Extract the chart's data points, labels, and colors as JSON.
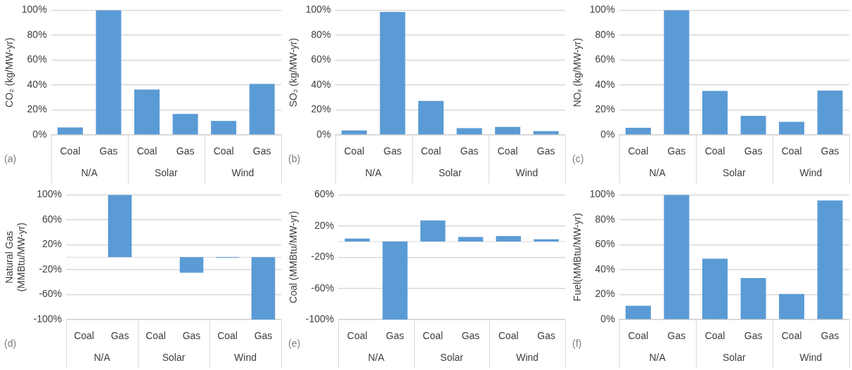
{
  "chart_data": [
    {
      "type": "bar",
      "ylabel": "CO₂ (kg/MW-yr)",
      "categories": [
        "Coal",
        "Gas",
        "Coal",
        "Gas",
        "Coal",
        "Gas"
      ],
      "values": [
        6,
        100,
        36.4,
        16.9,
        11.2,
        40.9
      ],
      "color": "#5b9bd5",
      "ylim": [
        0,
        100
      ],
      "yticks": [
        {
          "value": 0,
          "label": "0%"
        },
        {
          "value": 20,
          "label": "20%"
        },
        {
          "value": 40,
          "label": "40%"
        },
        {
          "value": 60,
          "label": "60%"
        },
        {
          "value": 80,
          "label": "80%"
        },
        {
          "value": 100,
          "label": "100%"
        }
      ],
      "grid": "y",
      "legend": false,
      "annotations": [
        "(a)",
        "N/A",
        "Solar",
        "Wind"
      ]
    },
    {
      "type": "bar",
      "ylabel": "SO₂ (kg/MW-yr)",
      "categories": [
        "Coal",
        "Gas",
        "Coal",
        "Gas",
        "Coal",
        "Gas"
      ],
      "values": [
        3.6,
        98.5,
        27.2,
        5.5,
        6.5,
        3
      ],
      "color": "#5b9bd5",
      "ylim": [
        0,
        100
      ],
      "yticks": [
        {
          "value": 0,
          "label": "0%"
        },
        {
          "value": 20,
          "label": "20%"
        },
        {
          "value": 40,
          "label": "40%"
        },
        {
          "value": 60,
          "label": "60%"
        },
        {
          "value": 80,
          "label": "80%"
        },
        {
          "value": 100,
          "label": "100%"
        }
      ],
      "grid": "y",
      "legend": false,
      "annotations": [
        "(b)",
        "N/A",
        "Solar",
        "Wind"
      ]
    },
    {
      "type": "bar",
      "ylabel": "NOₓ (kg/MW-yr)",
      "categories": [
        "Coal",
        "Gas",
        "Coal",
        "Gas",
        "Coal",
        "Gas"
      ],
      "values": [
        5.7,
        100,
        35.2,
        15.3,
        10.5,
        35.6
      ],
      "color": "#5b9bd5",
      "ylim": [
        0,
        100
      ],
      "yticks": [
        {
          "value": 0,
          "label": "0%"
        },
        {
          "value": 20,
          "label": "20%"
        },
        {
          "value": 40,
          "label": "40%"
        },
        {
          "value": 60,
          "label": "60%"
        },
        {
          "value": 80,
          "label": "80%"
        },
        {
          "value": 100,
          "label": "100%"
        }
      ],
      "grid": "y",
      "legend": false,
      "annotations": [
        "(c)",
        "N/A",
        "Solar",
        "Wind"
      ]
    },
    {
      "type": "bar",
      "ylabel": "Natural Gas\n(MMBtu/MW-yr)",
      "categories": [
        "Coal",
        "Gas",
        "Coal",
        "Gas",
        "Coal",
        "Gas"
      ],
      "values": [
        0,
        100,
        0,
        -25,
        -1,
        -100
      ],
      "color": "#5b9bd5",
      "ylim": [
        -100,
        100
      ],
      "yticks": [
        {
          "value": -100,
          "label": "-100%"
        },
        {
          "value": -60,
          "label": "-60%"
        },
        {
          "value": -20,
          "label": "-20%"
        },
        {
          "value": 20,
          "label": "20%"
        },
        {
          "value": 60,
          "label": "60%"
        },
        {
          "value": 100,
          "label": "100%"
        }
      ],
      "grid": "y",
      "legend": false,
      "annotations": [
        "(d)",
        "N/A",
        "Solar",
        "Wind"
      ]
    },
    {
      "type": "bar",
      "ylabel": "Coal (MMBtu/MW-yr)",
      "categories": [
        "Coal",
        "Gas",
        "Coal",
        "Gas",
        "Coal",
        "Gas"
      ],
      "values": [
        4,
        -100,
        27,
        6,
        7,
        3
      ],
      "color": "#5b9bd5",
      "ylim": [
        -100,
        60
      ],
      "yticks": [
        {
          "value": -100,
          "label": "-100%"
        },
        {
          "value": -60,
          "label": "-60%"
        },
        {
          "value": -20,
          "label": "-20%"
        },
        {
          "value": 20,
          "label": "20%"
        },
        {
          "value": 60,
          "label": "60%"
        }
      ],
      "grid": "y",
      "legend": false,
      "annotations": [
        "(e)",
        "N/A",
        "Solar",
        "Wind"
      ]
    },
    {
      "type": "bar",
      "ylabel": "Fuel(MMBtu/MW-yr)",
      "categories": [
        "Coal",
        "Gas",
        "Coal",
        "Gas",
        "Coal",
        "Gas"
      ],
      "values": [
        11.1,
        100,
        48.8,
        33.3,
        20.5,
        95.4
      ],
      "color": "#5b9bd5",
      "ylim": [
        0,
        100
      ],
      "yticks": [
        {
          "value": 0,
          "label": "0%"
        },
        {
          "value": 20,
          "label": "20%"
        },
        {
          "value": 40,
          "label": "40%"
        },
        {
          "value": 60,
          "label": "60%"
        },
        {
          "value": 80,
          "label": "80%"
        },
        {
          "value": 100,
          "label": "100%"
        }
      ],
      "grid": "y",
      "legend": false,
      "annotations": [
        "(f)",
        "N/A",
        "Solar",
        "Wind"
      ]
    }
  ]
}
